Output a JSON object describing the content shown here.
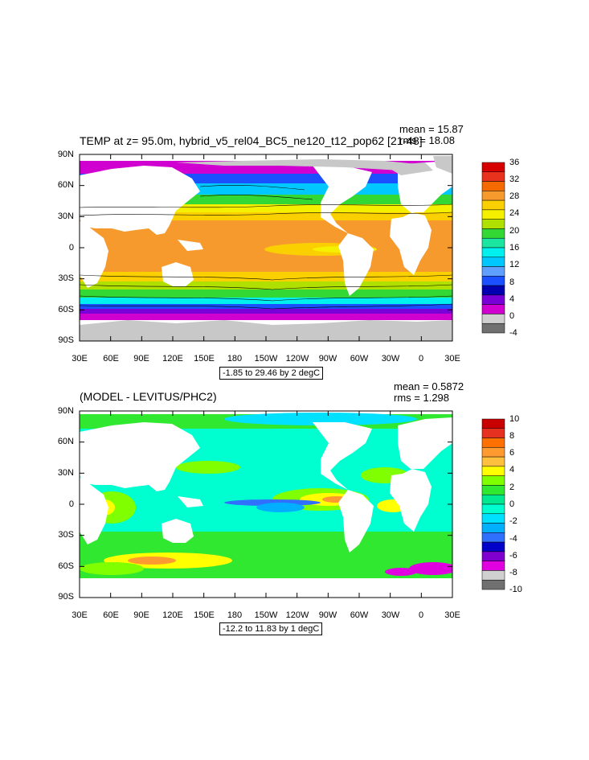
{
  "panels": [
    {
      "title": "TEMP at z=  95.0m, hybrid_v5_rel04_BC5_ne120_t12_pop62 [21-48]",
      "mean": "mean = 15.87",
      "rms": "rms = 18.08",
      "range": "-1.85 to 29.46 by 2 degC",
      "lat_ticks": [
        "90N",
        "60N",
        "30N",
        "0",
        "30S",
        "60S",
        "90S"
      ],
      "lon_ticks": [
        "30E",
        "60E",
        "90E",
        "120E",
        "150E",
        "180",
        "150W",
        "120W",
        "90W",
        "60W",
        "30W",
        "0",
        "30E"
      ],
      "colorbar_labels": [
        "36",
        "32",
        "28",
        "24",
        "20",
        "16",
        "12",
        "8",
        "4",
        "0",
        "-4"
      ],
      "colorbar_colors": [
        "#d60000",
        "#e8321e",
        "#f56a00",
        "#f79a2e",
        "#fbd000",
        "#f5f000",
        "#b0e000",
        "#34d834",
        "#1ae6a0",
        "#00f0f0",
        "#00c8ff",
        "#5fa0ff",
        "#1a50ff",
        "#0000b0",
        "#7a00d8",
        "#d000d0",
        "#d0d0d0",
        "#707070"
      ]
    },
    {
      "title": "(MODEL - LEVITUS/PHC2)",
      "mean": "mean = 0.5872",
      "rms": "rms = 1.298",
      "range": "-12.2 to 11.83 by 1 degC",
      "lat_ticks": [
        "90N",
        "60N",
        "30N",
        "0",
        "30S",
        "60S",
        "90S"
      ],
      "lon_ticks": [
        "30E",
        "60E",
        "90E",
        "120E",
        "150E",
        "180",
        "150W",
        "120W",
        "90W",
        "60W",
        "30W",
        "0",
        "30E"
      ],
      "colorbar_labels": [
        "10",
        "8",
        "6",
        "4",
        "2",
        "0",
        "-2",
        "-4",
        "-6",
        "-8",
        "-10"
      ],
      "colorbar_colors": [
        "#c80000",
        "#e63020",
        "#ff7000",
        "#ff9a30",
        "#ffc040",
        "#ffff00",
        "#80ff00",
        "#30e830",
        "#00e890",
        "#00ffd0",
        "#00e0ff",
        "#00b0ff",
        "#3070ff",
        "#0000c8",
        "#8000d0",
        "#e000e0",
        "#d0d0d0",
        "#707070"
      ]
    }
  ],
  "colors": {
    "land": "#ffffff",
    "ice": "#c8c8c8",
    "frame": "#000000"
  }
}
